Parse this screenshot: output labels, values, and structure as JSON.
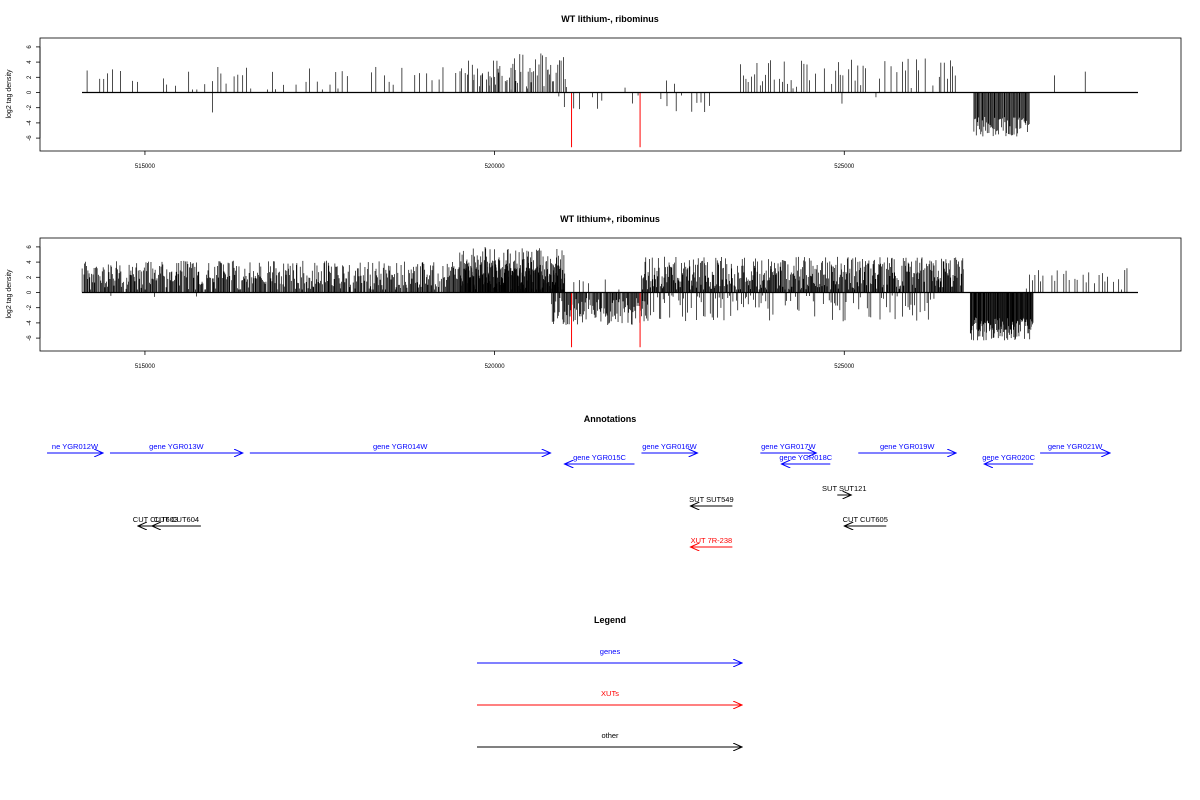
{
  "chart_data": [
    {
      "type": "bar",
      "title": "WT lithium-, ribominus",
      "xlabel": "",
      "ylabel": "log2 tag density",
      "xlim": [
        514100,
        529200
      ],
      "ylim": [
        -7,
        7
      ],
      "xticks": [
        515000,
        520000,
        525000
      ],
      "yticks": [
        6,
        4,
        2,
        0,
        -2,
        -4,
        -6
      ],
      "highlight_color": "#ff0000",
      "profile": {
        "positive_regions": [
          {
            "range": [
              514100,
              521000
            ],
            "step": 60,
            "base": 1.8,
            "spread": 1.6,
            "density": 0.55
          },
          {
            "range": [
              519500,
              521000
            ],
            "step": 25,
            "base": 3.0,
            "spread": 2.2,
            "density": 0.9
          },
          {
            "range": [
              521700,
              523300
            ],
            "step": 120,
            "base": 1.2,
            "spread": 0.6,
            "density": 0.3
          },
          {
            "range": [
              523500,
              526600
            ],
            "step": 40,
            "base": 2.5,
            "spread": 2.0,
            "density": 0.7
          },
          {
            "range": [
              527600,
              528900
            ],
            "step": 200,
            "base": 2.0,
            "spread": 1.2,
            "density": 0.3
          }
        ],
        "negative_regions": [
          {
            "range": [
              515900,
              516200
            ],
            "step": 400,
            "base": -2.5,
            "spread": 0.3,
            "density": 1
          },
          {
            "range": [
              520900,
              523200
            ],
            "step": 70,
            "base": -1.5,
            "spread": 1.2,
            "density": 0.45
          },
          {
            "range": [
              524500,
              525600
            ],
            "step": 150,
            "base": -1.2,
            "spread": 0.8,
            "density": 0.3
          },
          {
            "range": [
              526850,
              527650
            ],
            "step": 12,
            "base": -4.5,
            "spread": 1.3,
            "density": 1
          }
        ],
        "highlights": [
          {
            "x": 521100,
            "y": -7.2
          },
          {
            "x": 522080,
            "y": -7.2
          }
        ]
      }
    },
    {
      "type": "bar",
      "title": "WT lithium+, ribominus",
      "xlabel": "",
      "ylabel": "log2 tag density",
      "xlim": [
        514100,
        529200
      ],
      "ylim": [
        -7,
        7
      ],
      "xticks": [
        515000,
        520000,
        525000
      ],
      "yticks": [
        6,
        4,
        2,
        0,
        -2,
        -4,
        -6
      ],
      "highlight_color": "#ff0000",
      "profile": {
        "positive_regions": [
          {
            "range": [
              514100,
              521000
            ],
            "step": 12,
            "base": 2.2,
            "spread": 2.0,
            "density": 0.95
          },
          {
            "range": [
              519500,
              521000
            ],
            "step": 10,
            "base": 3.5,
            "spread": 2.5,
            "density": 1
          },
          {
            "range": [
              521100,
              522000
            ],
            "step": 80,
            "base": 1.0,
            "spread": 0.8,
            "density": 0.3
          },
          {
            "range": [
              522100,
              526700
            ],
            "step": 10,
            "base": 2.5,
            "spread": 2.2,
            "density": 0.95
          },
          {
            "range": [
              527600,
              529100
            ],
            "step": 40,
            "base": 1.8,
            "spread": 1.5,
            "density": 0.7
          }
        ],
        "negative_regions": [
          {
            "range": [
              514400,
              516300
            ],
            "step": 300,
            "base": -1.0,
            "spread": 0.6,
            "density": 0.5
          },
          {
            "range": [
              520800,
              522200
            ],
            "step": 12,
            "base": -2.5,
            "spread": 1.8,
            "density": 0.95
          },
          {
            "range": [
              522200,
              526300
            ],
            "step": 25,
            "base": -2.0,
            "spread": 1.8,
            "density": 0.6
          },
          {
            "range": [
              526800,
              527700
            ],
            "step": 8,
            "base": -4.8,
            "spread": 1.5,
            "density": 1
          }
        ],
        "highlights": [
          {
            "x": 521100,
            "y": -7.2
          },
          {
            "x": 522080,
            "y": -7.2
          }
        ]
      }
    }
  ],
  "annotations": {
    "title": "Annotations",
    "colors": {
      "gene": "#0000ff",
      "xut": "#ff0000",
      "other": "#000000"
    },
    "features": [
      {
        "label": "ne YGR012W",
        "kind": "gene",
        "start": 513600,
        "end": 514400,
        "dir": "+",
        "row": 0
      },
      {
        "label": "gene YGR013W",
        "kind": "gene",
        "start": 514500,
        "end": 516400,
        "dir": "+",
        "row": 0
      },
      {
        "label": "gene YGR014W",
        "kind": "gene",
        "start": 516500,
        "end": 520800,
        "dir": "+",
        "row": 0
      },
      {
        "label": "gene YGR015C",
        "kind": "gene",
        "start": 521000,
        "end": 522000,
        "dir": "-",
        "row": 1
      },
      {
        "label": "gene YGR016W",
        "kind": "gene",
        "start": 522100,
        "end": 522900,
        "dir": "+",
        "row": 0
      },
      {
        "label": "gene YGR017W",
        "kind": "gene",
        "start": 523800,
        "end": 524600,
        "dir": "+",
        "row": 0
      },
      {
        "label": "gene YGR018C",
        "kind": "gene",
        "start": 524100,
        "end": 524800,
        "dir": "-",
        "row": 1
      },
      {
        "label": "gene YGR019W",
        "kind": "gene",
        "start": 525200,
        "end": 526600,
        "dir": "+",
        "row": 0
      },
      {
        "label": "gene YGR020C",
        "kind": "gene",
        "start": 527000,
        "end": 527700,
        "dir": "-",
        "row": 1
      },
      {
        "label": "gene YGR021W",
        "kind": "gene",
        "start": 527800,
        "end": 528800,
        "dir": "+",
        "row": 0
      },
      {
        "label": "SUT SUT549",
        "kind": "other",
        "start": 522800,
        "end": 523400,
        "dir": "-",
        "row": 2
      },
      {
        "label": "SUT SUT121",
        "kind": "other",
        "start": 524900,
        "end": 525100,
        "dir": "+",
        "row": 3
      },
      {
        "label": "CUT CUT603",
        "kind": "other",
        "start": 514900,
        "end": 515400,
        "dir": "-",
        "row": 4
      },
      {
        "label": "CUT CUT604",
        "kind": "other",
        "start": 515100,
        "end": 515800,
        "dir": "-",
        "row": 4
      },
      {
        "label": "CUT CUT605",
        "kind": "other",
        "start": 525000,
        "end": 525600,
        "dir": "-",
        "row": 4
      },
      {
        "label": "XUT 7R-238",
        "kind": "xut",
        "start": 522800,
        "end": 523400,
        "dir": "-",
        "row": 5
      }
    ]
  },
  "legend": {
    "title": "Legend",
    "items": [
      {
        "label": "genes",
        "color": "#0000ff"
      },
      {
        "label": "XUTs",
        "color": "#ff0000"
      },
      {
        "label": "other",
        "color": "#000000"
      }
    ]
  }
}
